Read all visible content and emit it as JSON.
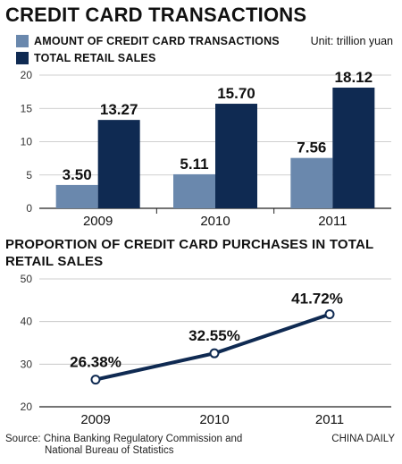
{
  "title": "CREDIT CARD TRANSACTIONS",
  "unit": "Unit: trillion yuan",
  "colors": {
    "credit": "#6a88ad",
    "retail": "#0f2a52",
    "line": "#0f2a52",
    "grid": "#bfbfbf"
  },
  "chart_data": [
    {
      "type": "bar",
      "title": "CREDIT CARD TRANSACTIONS",
      "categories": [
        "2009",
        "2010",
        "2011"
      ],
      "series": [
        {
          "name": "AMOUNT OF CREDIT CARD TRANSACTIONS",
          "values": [
            3.5,
            5.11,
            7.56
          ],
          "labels": [
            "3.50",
            "5.11",
            "7.56"
          ]
        },
        {
          "name": "TOTAL RETAIL SALES",
          "values": [
            13.27,
            15.7,
            18.12
          ],
          "labels": [
            "13.27",
            "15.70",
            "18.12"
          ]
        }
      ],
      "ylim": [
        0,
        20
      ],
      "yticks": [
        0,
        5,
        10,
        15,
        20
      ],
      "ytick_labels": [
        "0",
        "5",
        "10",
        "15",
        "20"
      ],
      "grid": true,
      "legend": "top-left"
    },
    {
      "type": "line",
      "title": "PROPORTION OF CREDIT CARD PURCHASES IN TOTAL RETAIL SALES",
      "categories": [
        "2009",
        "2010",
        "2011"
      ],
      "values": [
        26.38,
        32.55,
        41.72
      ],
      "labels": [
        "26.38%",
        "32.55%",
        "41.72%"
      ],
      "ylim": [
        20,
        50
      ],
      "yticks": [
        20,
        30,
        40,
        50
      ],
      "ytick_labels": [
        "20",
        "30",
        "40",
        "50"
      ],
      "grid": true
    }
  ],
  "source": [
    "Source: China Banking Regulatory Commission and",
    "National Bureau of Statistics"
  ],
  "credit": "CHINA DAILY"
}
